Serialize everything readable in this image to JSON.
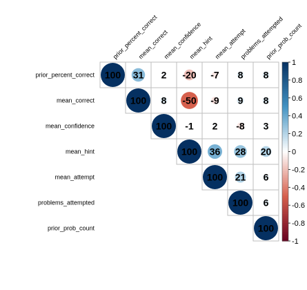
{
  "chart_data": {
    "type": "heatmap",
    "variables": [
      "prior_percent_correct",
      "mean_correct",
      "mean_confidence",
      "mean_hint",
      "mean_attempt",
      "problems_attempted",
      "prior_prob_count"
    ],
    "matrix": [
      [
        100,
        31,
        2,
        -20,
        -7,
        8,
        8
      ],
      [
        null,
        100,
        8,
        -50,
        -9,
        9,
        8
      ],
      [
        null,
        null,
        100,
        -1,
        2,
        -8,
        3
      ],
      [
        null,
        null,
        null,
        100,
        36,
        28,
        20
      ],
      [
        null,
        null,
        null,
        null,
        100,
        21,
        6
      ],
      [
        null,
        null,
        null,
        null,
        null,
        100,
        6
      ],
      [
        null,
        null,
        null,
        null,
        null,
        null,
        100
      ]
    ],
    "value_range": [
      -100,
      100
    ],
    "colorbar": {
      "ticks": [
        "1",
        "0.8",
        "0.6",
        "0.4",
        "0.2",
        "0",
        "-0.2",
        "-0.4",
        "-0.6",
        "-0.8",
        "-1"
      ],
      "tick_values": [
        1,
        0.8,
        0.6,
        0.4,
        0.2,
        0,
        -0.2,
        -0.4,
        -0.6,
        -0.8,
        -1
      ],
      "placement": "right"
    },
    "layout": "upper-triangle",
    "colors": {
      "negative_end": "#67001f",
      "negative_mid": "#d6604d",
      "neutral": "#ffffff",
      "positive_mid": "#4393c3",
      "positive_end": "#053061",
      "grid": "#bebebe"
    }
  }
}
